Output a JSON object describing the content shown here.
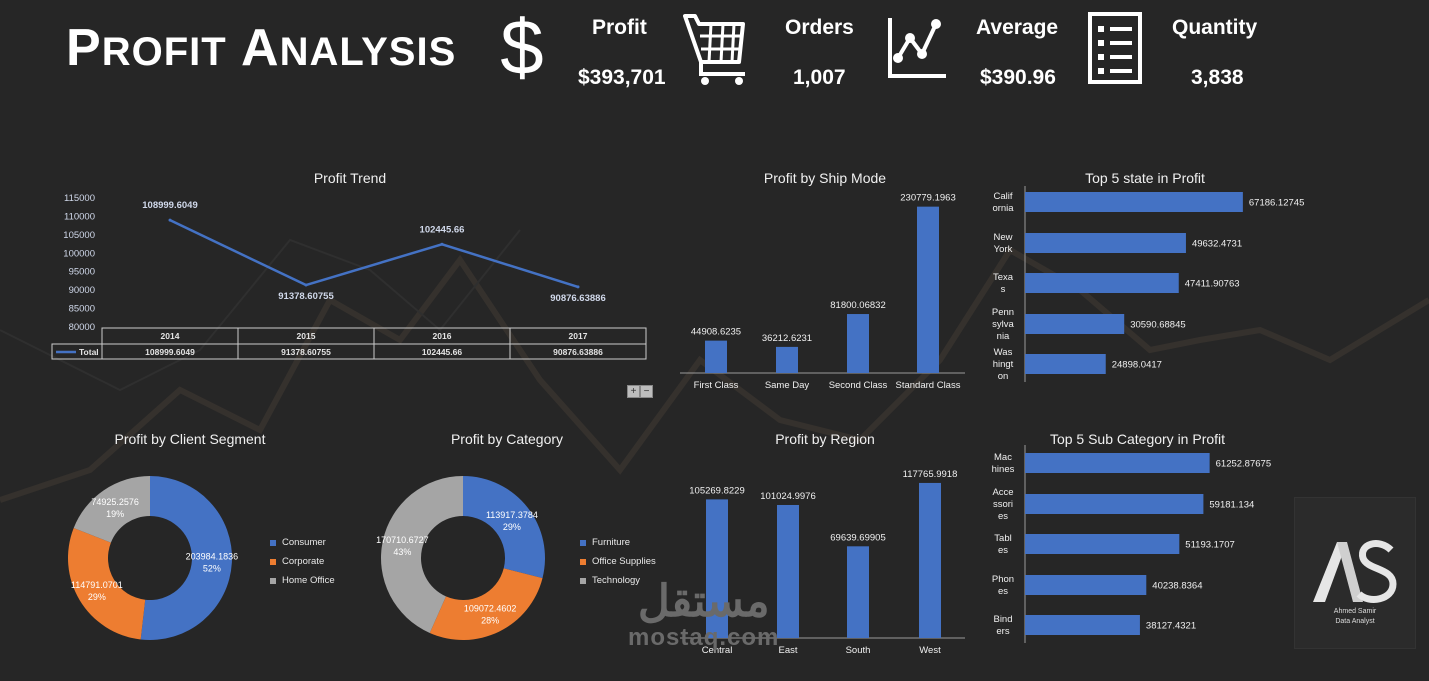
{
  "header": {
    "title_first_big": "P",
    "title_first_rest": "ROFIT",
    "title_second_big": "A",
    "title_second_rest": "NALYSIS"
  },
  "kpis": [
    {
      "icon": "dollar-icon",
      "label": "Profit",
      "value": "$393,701"
    },
    {
      "icon": "cart-icon",
      "label": "Orders",
      "value": "1,007"
    },
    {
      "icon": "line-chart-icon",
      "label": "Average",
      "value": "$390.96"
    },
    {
      "icon": "list-icon",
      "label": "Quantity",
      "value": "3,838"
    }
  ],
  "colors": {
    "blue": "#4472c4",
    "orange": "#ed7d31",
    "gray": "#a5a5a5",
    "background": "#262626"
  },
  "chart_data": [
    {
      "id": "profit_trend",
      "type": "line",
      "title": "Profit Trend",
      "categories": [
        "2014",
        "2015",
        "2016",
        "2017"
      ],
      "series": [
        {
          "name": "Total",
          "values": [
            108999.6049,
            91378.60755,
            102445.66,
            90876.63886
          ]
        }
      ],
      "data_labels": [
        "108999.6049",
        "91378.60755",
        "102445.66",
        "90876.63886"
      ],
      "yticks": [
        "115000",
        "110000",
        "105000",
        "100000",
        "95000",
        "90000",
        "85000",
        "80000"
      ],
      "ylim": [
        80000,
        115000
      ],
      "table": {
        "series_label": "Total",
        "values": [
          "108999.6049",
          "91378.60755",
          "102445.66",
          "90876.63886"
        ]
      },
      "pivot_buttons": [
        "+",
        "−"
      ]
    },
    {
      "id": "profit_by_ship_mode",
      "type": "bar",
      "title": "Profit by Ship Mode",
      "categories": [
        "First Class",
        "Same Day",
        "Second Class",
        "Standard Class"
      ],
      "values": [
        44908.6235,
        36212.6231,
        81800.06832,
        230779.1963
      ],
      "data_labels": [
        "44908.6235",
        "36212.6231",
        "81800.06832",
        "230779.1963"
      ],
      "ylim": [
        0,
        240000
      ]
    },
    {
      "id": "top5_state",
      "type": "bar",
      "orientation": "horizontal",
      "title": "Top 5 state in Profit",
      "categories": [
        [
          "Calif",
          "ornia"
        ],
        [
          "New",
          "York"
        ],
        [
          "Texa",
          "s"
        ],
        [
          "Penn",
          "sylva",
          "nia"
        ],
        [
          "Was",
          "hingt",
          "on"
        ]
      ],
      "values": [
        67186.12745,
        49632.4731,
        47411.90763,
        30590.68845,
        24898.0417
      ],
      "data_labels": [
        "67186.12745",
        "49632.4731",
        "47411.90763",
        "30590.68845",
        "24898.0417"
      ],
      "xlim": [
        0,
        70000
      ]
    },
    {
      "id": "profit_by_segment",
      "type": "pie",
      "donut": true,
      "title": "Profit by Client Segment",
      "categories": [
        "Consumer",
        "Corporate",
        "Home Office"
      ],
      "values": [
        203984.1836,
        114791.0701,
        74925.2576
      ],
      "data_labels": [
        [
          "203984.1836",
          "52%"
        ],
        [
          "114791.0701",
          "29%"
        ],
        [
          "74925.2576",
          "19%"
        ]
      ],
      "colors": [
        "#4472c4",
        "#ed7d31",
        "#a5a5a5"
      ],
      "legend": "right"
    },
    {
      "id": "profit_by_category",
      "type": "pie",
      "donut": true,
      "title": "Profit by Category",
      "categories": [
        "Furniture",
        "Office Supplies",
        "Technology"
      ],
      "values": [
        113917.3784,
        109072.4602,
        170710.6727
      ],
      "data_labels": [
        [
          "113917.3784",
          "29%"
        ],
        [
          "109072.4602",
          "28%"
        ],
        [
          "170710.6727",
          "43%"
        ]
      ],
      "colors": [
        "#4472c4",
        "#ed7d31",
        "#a5a5a5"
      ],
      "legend": "right"
    },
    {
      "id": "profit_by_region",
      "type": "bar",
      "title": "Profit by Region",
      "categories": [
        "Central",
        "East",
        "South",
        "West"
      ],
      "values": [
        105269.8229,
        101024.9976,
        69639.69905,
        117765.9918
      ],
      "data_labels": [
        "105269.8229",
        "101024.9976",
        "69639.69905",
        "117765.9918"
      ],
      "ylim": [
        0,
        120000
      ]
    },
    {
      "id": "top5_subcategory",
      "type": "bar",
      "orientation": "horizontal",
      "title": "Top 5 Sub Category in Profit",
      "categories": [
        [
          "Mac",
          "hines"
        ],
        [
          "Acce",
          "ssori",
          "es"
        ],
        [
          "Tabl",
          "es"
        ],
        [
          "Phon",
          "es"
        ],
        [
          "Bind",
          "ers"
        ]
      ],
      "values": [
        61252.87675,
        59181.134,
        51193.1707,
        40238.8364,
        38127.4321
      ],
      "data_labels": [
        "61252.87675",
        "59181.134",
        "51193.1707",
        "40238.8364",
        "38127.4321"
      ],
      "xlim": [
        0,
        70000
      ]
    }
  ],
  "logo": {
    "line1": "Ahmed Samir",
    "line2": "Data Analyst"
  },
  "watermark": {
    "arabic": "مستقل",
    "latin": "mostaq.com"
  }
}
